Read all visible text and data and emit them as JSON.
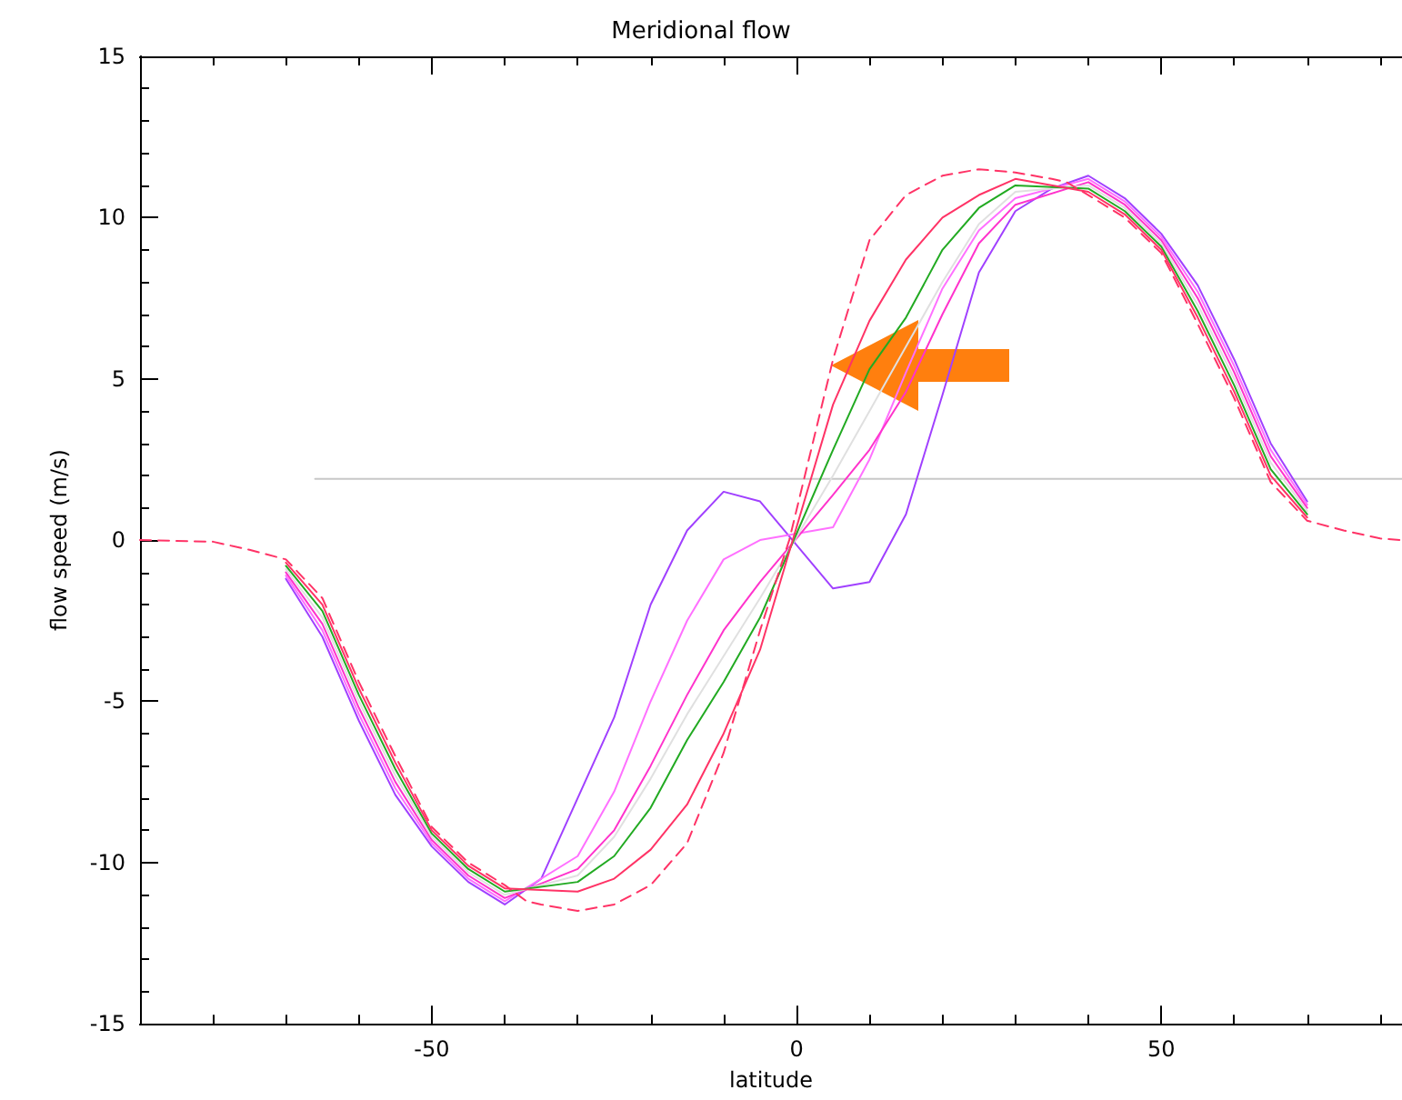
{
  "chart_data": {
    "type": "line",
    "title": "Meridional flow",
    "xlabel": "latitude",
    "ylabel": "flow speed (m/s)",
    "x": [
      -70,
      -65,
      -60,
      -55,
      -50,
      -45,
      -40,
      -30,
      -25,
      -20,
      -15,
      -10,
      -5,
      5,
      10,
      15,
      20,
      25,
      30,
      40,
      45,
      50,
      55,
      60,
      65,
      70
    ],
    "xlim": [
      -90,
      83
    ],
    "xticks": [
      {
        "value": -80,
        "label": null
      },
      {
        "value": -70,
        "label": null
      },
      {
        "value": -60,
        "label": null
      },
      -50,
      {
        "value": -40,
        "label": null
      },
      {
        "value": -30,
        "label": null
      },
      {
        "value": -20,
        "label": null
      },
      {
        "value": -10,
        "label": null
      },
      0,
      {
        "value": 10,
        "label": null
      },
      {
        "value": 20,
        "label": null
      },
      {
        "value": 30,
        "label": null
      },
      {
        "value": 40,
        "label": null
      },
      50,
      {
        "value": 60,
        "label": null
      },
      {
        "value": 70,
        "label": null
      },
      {
        "value": 80,
        "label": null
      }
    ],
    "ylim": [
      -15,
      15
    ],
    "yticks": [
      -15,
      {
        "value": -14,
        "label": null
      },
      {
        "value": -13,
        "label": null
      },
      {
        "value": -12,
        "label": null
      },
      {
        "value": -11,
        "label": null
      },
      -10,
      {
        "value": -9,
        "label": null
      },
      {
        "value": -8,
        "label": null
      },
      {
        "value": -7,
        "label": null
      },
      {
        "value": -6,
        "label": null
      },
      -5,
      {
        "value": -4,
        "label": null
      },
      {
        "value": -3,
        "label": null
      },
      {
        "value": -2,
        "label": null
      },
      {
        "value": -1,
        "label": null
      },
      0,
      {
        "value": 1,
        "label": null
      },
      {
        "value": 2,
        "label": null
      },
      {
        "value": 3,
        "label": null
      },
      {
        "value": 4,
        "label": null
      },
      5,
      {
        "value": 6,
        "label": null
      },
      {
        "value": 7,
        "label": null
      },
      {
        "value": 8,
        "label": null
      },
      {
        "value": 9,
        "label": null
      },
      10,
      {
        "value": 11,
        "label": null
      },
      {
        "value": 12,
        "label": null
      },
      {
        "value": 13,
        "label": null
      },
      {
        "value": 14,
        "label": null
      },
      15
    ],
    "grid": false,
    "marker": "none",
    "series": [
      {
        "color": "#c8c8c8",
        "x": [
          -66,
          83
        ],
        "values": [
          1.9,
          1.9
        ]
      },
      {
        "color": "#a040ff",
        "x": [
          -70,
          -65,
          -60,
          -55,
          -50,
          -45,
          -40,
          -35,
          -30,
          -25,
          -20,
          -15,
          -10,
          -5,
          5,
          10,
          15,
          20,
          25,
          30,
          35,
          40,
          45,
          50,
          55,
          60,
          65,
          70
        ],
        "values": [
          -1.2,
          -3.0,
          -5.6,
          -7.9,
          -9.5,
          -10.6,
          -11.3,
          -10.5,
          -8.0,
          -5.5,
          -2.0,
          0.3,
          1.5,
          1.2,
          -1.5,
          -1.3,
          0.8,
          4.5,
          8.3,
          10.2,
          10.9,
          11.3,
          10.6,
          9.5,
          7.9,
          5.6,
          3.0,
          1.2
        ]
      },
      {
        "color": "#ff70ff",
        "values": [
          -1.1,
          -2.8,
          -5.4,
          -7.7,
          -9.4,
          -10.5,
          -11.2,
          -9.8,
          -7.8,
          -5.0,
          -2.5,
          -0.6,
          0,
          0.4,
          2.5,
          5.2,
          7.8,
          9.6,
          10.6,
          11.2,
          10.5,
          9.4,
          7.7,
          5.4,
          2.8,
          1.1
        ]
      },
      {
        "color": "#ff33cc",
        "values": [
          -1.0,
          -2.6,
          -5.2,
          -7.5,
          -9.3,
          -10.4,
          -11.1,
          -10.2,
          -9.0,
          -7.0,
          -4.8,
          -2.8,
          -1.3,
          1.4,
          2.8,
          4.6,
          7.0,
          9.2,
          10.4,
          11.1,
          10.4,
          9.3,
          7.5,
          5.2,
          2.6,
          1.0
        ]
      },
      {
        "color": "#e0e0e0",
        "values": [
          -0.9,
          -2.4,
          -5.0,
          -7.3,
          -9.2,
          -10.3,
          -11.0,
          -10.4,
          -9.2,
          -7.4,
          -5.4,
          -3.6,
          -1.8,
          2.0,
          4.0,
          6.0,
          8.0,
          9.8,
          10.8,
          11.0,
          10.3,
          9.2,
          7.3,
          5.0,
          2.4,
          0.9
        ]
      },
      {
        "color": "#22aa22",
        "values": [
          -0.8,
          -2.2,
          -4.8,
          -7.1,
          -9.1,
          -10.2,
          -10.9,
          -10.6,
          -9.8,
          -8.3,
          -6.2,
          -4.4,
          -2.4,
          2.8,
          5.3,
          6.9,
          9.0,
          10.3,
          11.0,
          10.9,
          10.2,
          9.1,
          7.1,
          4.8,
          2.2,
          0.8
        ]
      },
      {
        "color": "#ff3366",
        "values": [
          -0.7,
          -2.0,
          -4.6,
          -6.9,
          -9.0,
          -10.1,
          -10.8,
          -10.9,
          -10.5,
          -9.6,
          -8.2,
          -6.0,
          -3.4,
          4.2,
          6.8,
          8.7,
          10.0,
          10.7,
          11.2,
          10.8,
          10.1,
          9.0,
          6.9,
          4.6,
          2.0,
          0.7
        ]
      },
      {
        "color": "#ff3366",
        "line_style": "dashed",
        "x": [
          -90,
          -80,
          -75,
          -70,
          -65,
          -60,
          -55,
          -50,
          -45,
          -40,
          -37,
          -35,
          -30,
          -25,
          -20,
          -15,
          -10,
          -5,
          -1,
          5,
          10,
          15,
          20,
          25,
          30,
          35,
          37,
          40,
          45,
          50,
          55,
          60,
          65,
          70,
          75,
          80,
          83
        ],
        "values": [
          0,
          -0.05,
          -0.3,
          -0.6,
          -1.8,
          -4.4,
          -6.7,
          -8.9,
          -10.0,
          -10.7,
          -11.2,
          -11.3,
          -11.5,
          -11.3,
          -10.7,
          -9.4,
          -6.6,
          -2.8,
          0,
          5.6,
          9.3,
          10.7,
          11.3,
          11.5,
          11.4,
          11.2,
          11.1,
          10.7,
          10.0,
          8.9,
          6.7,
          4.4,
          1.8,
          0.6,
          0.3,
          0.05,
          0
        ]
      }
    ]
  }
}
